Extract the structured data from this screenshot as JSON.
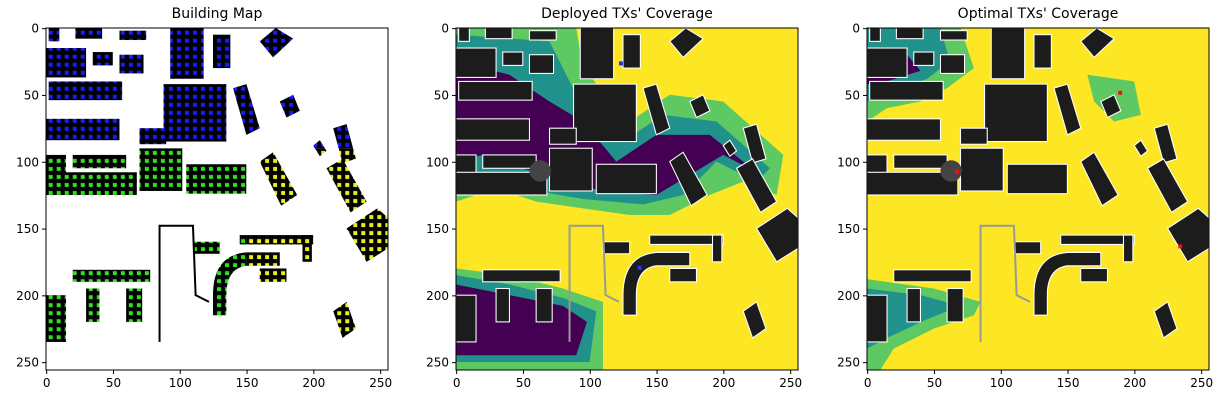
{
  "chart_data": [
    {
      "type": "image",
      "title": "Building Map",
      "xlim": [
        -0.5,
        255.5
      ],
      "ylim": [
        255.5,
        -0.5
      ],
      "xticks": [
        0,
        50,
        100,
        150,
        200,
        250
      ],
      "yticks": [
        0,
        50,
        100,
        150,
        200,
        250
      ]
    },
    {
      "type": "image",
      "title": "Deployed TXs' Coverage",
      "xlim": [
        -0.5,
        255.5
      ],
      "ylim": [
        255.5,
        -0.5
      ],
      "xticks": [
        0,
        50,
        100,
        150,
        200,
        250
      ],
      "yticks": [
        0,
        50,
        100,
        150,
        200,
        250
      ]
    },
    {
      "type": "image",
      "title": "Optimal TXs' Coverage",
      "xlim": [
        -0.5,
        255.5
      ],
      "ylim": [
        255.5,
        -0.5
      ],
      "xticks": [
        0,
        50,
        100,
        150,
        200,
        250
      ],
      "yticks": [
        0,
        50,
        100,
        150,
        200,
        250
      ]
    }
  ]
}
